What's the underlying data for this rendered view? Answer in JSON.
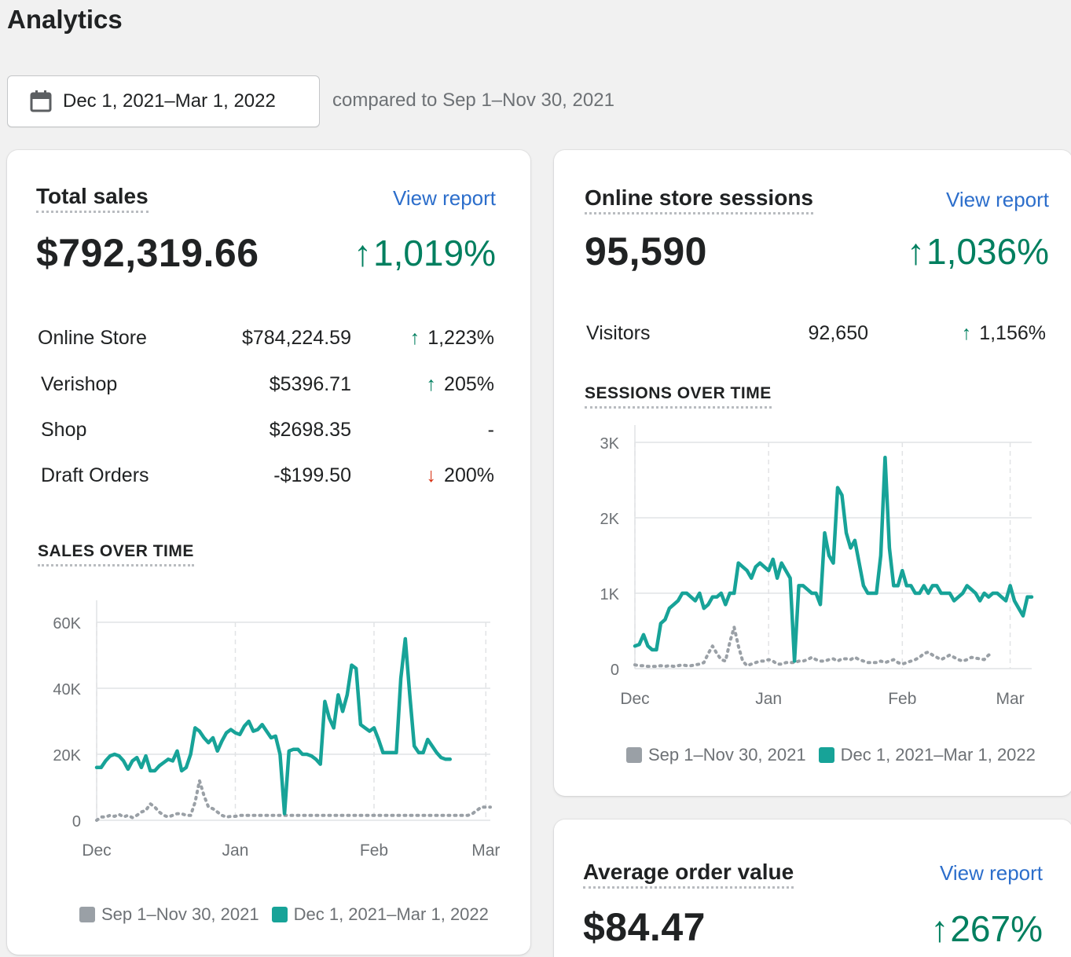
{
  "page": {
    "title": "Analytics"
  },
  "date_range": {
    "label": "Dec 1, 2021–Mar 1, 2022",
    "compare_text": "compared to Sep 1–Nov 30, 2021"
  },
  "colors": {
    "current": "#17a398",
    "previous": "#9aa0a6",
    "up": "#007f5f",
    "down": "#d72c0d",
    "link": "#2c6ecb"
  },
  "total_sales": {
    "title": "Total sales",
    "view_report": "View report",
    "value": "$792,319.66",
    "change": "1,019%",
    "rows": [
      {
        "label": "Online Store",
        "value": "$784,224.59",
        "change": "1,223%",
        "direction": "up"
      },
      {
        "label": "Verishop",
        "value": "$5396.71",
        "change": "205%",
        "direction": "up"
      },
      {
        "label": "Shop",
        "value": "$2698.35",
        "change": "-",
        "direction": "none"
      },
      {
        "label": "Draft Orders",
        "value": "-$199.50",
        "change": "200%",
        "direction": "down"
      }
    ],
    "chart_title": "SALES OVER TIME"
  },
  "sessions": {
    "title": "Online store sessions",
    "view_report": "View report",
    "value": "95,590",
    "change": "1,036%",
    "rows": [
      {
        "label": "Visitors",
        "value": "92,650",
        "change": "1,156%",
        "direction": "up"
      }
    ],
    "chart_title": "SESSIONS OVER TIME"
  },
  "aov": {
    "title": "Average order value",
    "view_report": "View report",
    "value": "$84.47",
    "change": "267%"
  },
  "legend": {
    "previous": "Sep 1–Nov 30, 2021",
    "current": "Dec 1, 2021–Mar 1, 2022"
  },
  "chart_data": [
    {
      "type": "line",
      "title": "SALES OVER TIME",
      "xlabel": "",
      "ylabel": "",
      "ylim": [
        0,
        60000
      ],
      "yticks": [
        "0",
        "20K",
        "40K",
        "60K"
      ],
      "xticks": [
        "Dec",
        "Jan",
        "Feb",
        "Mar"
      ],
      "xtick_index": [
        0,
        31,
        62,
        87
      ],
      "grid": true,
      "legend": "bottom",
      "series": [
        {
          "name": "Sep 1–Nov 30, 2021",
          "style": "dotted",
          "values": [
            0,
            1000,
            1000,
            1500,
            1200,
            1800,
            1000,
            1500,
            800,
            1500,
            2500,
            3000,
            5000,
            4000,
            2500,
            1500,
            1000,
            1500,
            2000,
            2000,
            1500,
            1500,
            5500,
            12000,
            7500,
            4000,
            3500,
            2500,
            1500,
            1000,
            1200,
            1200,
            1500,
            1500,
            1500,
            1500,
            1500,
            1500,
            1500,
            1500,
            1500,
            1500,
            1500,
            1500,
            1500,
            1500,
            1500,
            1500,
            1500,
            1500,
            1500,
            1500,
            1500,
            1500,
            1500,
            1500,
            1500,
            1500,
            1500,
            1500,
            1500,
            1500,
            1500,
            1500,
            1500,
            1500,
            1500,
            1500,
            1500,
            1500,
            1500,
            1500,
            1500,
            1500,
            1500,
            1500,
            1500,
            1500,
            1500,
            1500,
            1500,
            1500,
            1500,
            1500,
            2000,
            3000,
            4000,
            4000,
            4000
          ]
        },
        {
          "name": "Dec 1, 2021–Mar 1, 2022",
          "style": "solid",
          "values": [
            16000,
            16000,
            18000,
            19500,
            20000,
            19500,
            18000,
            15500,
            18000,
            19000,
            16000,
            19500,
            15000,
            15000,
            16500,
            17500,
            18500,
            18000,
            21000,
            15000,
            16000,
            20000,
            28000,
            27000,
            25000,
            23500,
            25000,
            21000,
            24000,
            26500,
            27500,
            26500,
            26000,
            28500,
            30000,
            27000,
            27500,
            29000,
            27000,
            25000,
            25500,
            20000,
            2000,
            21000,
            21500,
            21500,
            20000,
            20000,
            19500,
            18500,
            17000,
            36000,
            31000,
            28000,
            38000,
            33000,
            38000,
            47000,
            46000,
            29000,
            28000,
            27000,
            28000,
            24500,
            20500,
            20500,
            20500,
            20500,
            43000,
            55000,
            38000,
            22500,
            20500,
            20500,
            24500,
            22500,
            20500,
            19000,
            18500,
            18500
          ]
        }
      ]
    },
    {
      "type": "line",
      "title": "SESSIONS OVER TIME",
      "xlabel": "",
      "ylabel": "",
      "ylim": [
        0,
        3000
      ],
      "yticks": [
        "0",
        "1K",
        "2K",
        "3K"
      ],
      "xticks": [
        "Dec",
        "Jan",
        "Feb",
        "Mar"
      ],
      "xtick_index": [
        0,
        31,
        62,
        87
      ],
      "grid": true,
      "legend": "bottom",
      "series": [
        {
          "name": "Sep 1–Nov 30, 2021",
          "style": "dotted",
          "values": [
            50,
            40,
            40,
            30,
            30,
            30,
            40,
            30,
            40,
            30,
            40,
            50,
            40,
            40,
            50,
            60,
            80,
            200,
            300,
            200,
            120,
            100,
            350,
            550,
            300,
            100,
            40,
            60,
            80,
            100,
            100,
            120,
            100,
            60,
            60,
            80,
            80,
            80,
            100,
            100,
            120,
            150,
            120,
            100,
            100,
            120,
            130,
            100,
            130,
            130,
            120,
            150,
            120,
            100,
            80,
            80,
            80,
            100,
            80,
            100,
            120,
            80,
            60,
            80,
            100,
            120,
            150,
            200,
            220,
            180,
            150,
            120,
            150,
            180,
            150,
            120,
            100,
            120,
            150,
            140,
            130,
            120,
            180,
            200
          ]
        },
        {
          "name": "Dec 1, 2021–Mar 1, 2022",
          "style": "solid",
          "values": [
            300,
            320,
            450,
            300,
            250,
            250,
            600,
            650,
            800,
            850,
            900,
            1000,
            1000,
            950,
            900,
            1000,
            800,
            850,
            950,
            950,
            1000,
            850,
            1000,
            1000,
            1400,
            1350,
            1300,
            1200,
            1350,
            1400,
            1350,
            1300,
            1450,
            1200,
            1400,
            1300,
            1200,
            100,
            1100,
            1100,
            1050,
            1000,
            1000,
            850,
            1800,
            1500,
            1400,
            2400,
            2300,
            1800,
            1600,
            1700,
            1400,
            1100,
            1000,
            1000,
            1000,
            1500,
            2800,
            1600,
            1100,
            1100,
            1300,
            1100,
            1100,
            1000,
            1000,
            1100,
            1000,
            1100,
            1100,
            1000,
            1000,
            1000,
            900,
            950,
            1000,
            1100,
            1050,
            1000,
            900,
            1000,
            950,
            1000,
            1000,
            950,
            900,
            1100,
            900,
            800,
            700,
            950,
            950
          ]
        }
      ]
    }
  ]
}
